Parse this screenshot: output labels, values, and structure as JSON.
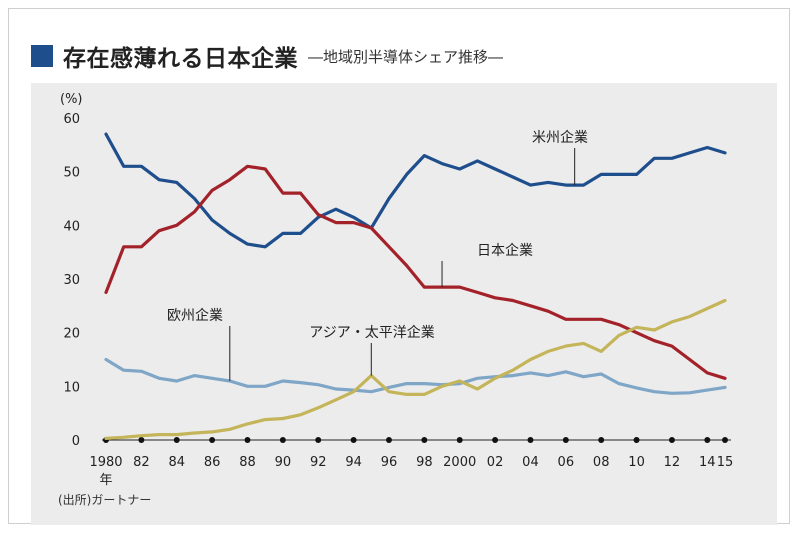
{
  "header": {
    "title": "存在感薄れる日本企業",
    "subtitle": "―地域別半導体シェア推移―"
  },
  "source": "(出所)ガートナー",
  "colors": {
    "accent": "#1f4e8c",
    "us": "#1f4e8c",
    "japan": "#a3222a",
    "asia": "#c4b55a",
    "europe": "#7fa6c7",
    "panel": "#ececec"
  },
  "chart_data": {
    "type": "line",
    "title": "存在感薄れる日本企業",
    "subtitle": "―地域別半導体シェア推移―",
    "y_unit": "(%)",
    "ylim": [
      0,
      60
    ],
    "y_ticks": [
      0,
      10,
      20,
      30,
      40,
      50,
      60
    ],
    "xlim": [
      1980,
      2015
    ],
    "x_tick_values": [
      1980,
      1982,
      1984,
      1986,
      1988,
      1990,
      1992,
      1994,
      1996,
      1998,
      2000,
      2002,
      2004,
      2006,
      2008,
      2010,
      2012,
      2014,
      2015
    ],
    "x_tick_labels": [
      "1980",
      "82",
      "84",
      "86",
      "88",
      "90",
      "92",
      "94",
      "96",
      "98",
      "2000",
      "02",
      "04",
      "06",
      "08",
      "10",
      "12",
      "14",
      "15"
    ],
    "x_year_suffix": "年",
    "series": [
      {
        "name": "米州企業",
        "color_key": "us",
        "x": [
          1980,
          1981,
          1982,
          1983,
          1984,
          1985,
          1986,
          1987,
          1988,
          1989,
          1990,
          1991,
          1992,
          1993,
          1994,
          1995,
          1996,
          1997,
          1998,
          1999,
          2000,
          2001,
          2002,
          2003,
          2004,
          2005,
          2006,
          2007,
          2008,
          2009,
          2010,
          2011,
          2012,
          2013,
          2014,
          2015
        ],
        "values": [
          57,
          51,
          51,
          48.5,
          48,
          45,
          41,
          38.5,
          36.5,
          36,
          38.5,
          38.5,
          41.5,
          43,
          41.5,
          39.5,
          45,
          49.5,
          53,
          51.5,
          50.5,
          52,
          50.5,
          49,
          47.5,
          48,
          47.5,
          47.5,
          49.5,
          49.5,
          49.5,
          52.5,
          52.5,
          53.5,
          54.5,
          53.5
        ]
      },
      {
        "name": "日本企業",
        "color_key": "japan",
        "x": [
          1980,
          1981,
          1982,
          1983,
          1984,
          1985,
          1986,
          1987,
          1988,
          1989,
          1990,
          1991,
          1992,
          1993,
          1994,
          1995,
          1996,
          1997,
          1998,
          1999,
          2000,
          2001,
          2002,
          2003,
          2004,
          2005,
          2006,
          2007,
          2008,
          2009,
          2010,
          2011,
          2012,
          2013,
          2014,
          2015
        ],
        "values": [
          27.5,
          36,
          36,
          39,
          40,
          42.5,
          46.5,
          48.5,
          51,
          50.5,
          46,
          46,
          42,
          40.5,
          40.5,
          39.5,
          36,
          32.5,
          28.5,
          28.5,
          28.5,
          27.5,
          26.5,
          26,
          25,
          24,
          22.5,
          22.5,
          22.5,
          21.5,
          20,
          18.5,
          17.5,
          15,
          12.5,
          11.5
        ]
      },
      {
        "name": "欧州企業",
        "color_key": "europe",
        "x": [
          1980,
          1981,
          1982,
          1983,
          1984,
          1985,
          1986,
          1987,
          1988,
          1989,
          1990,
          1991,
          1992,
          1993,
          1994,
          1995,
          1996,
          1997,
          1998,
          1999,
          2000,
          2001,
          2002,
          2003,
          2004,
          2005,
          2006,
          2007,
          2008,
          2009,
          2010,
          2011,
          2012,
          2013,
          2014,
          2015
        ],
        "values": [
          15,
          13,
          12.8,
          11.5,
          11,
          12,
          11.5,
          11,
          10,
          10,
          11,
          10.7,
          10.3,
          9.5,
          9.3,
          9,
          9.8,
          10.5,
          10.5,
          10.3,
          10.5,
          11.5,
          11.8,
          12,
          12.5,
          12,
          12.7,
          11.8,
          12.3,
          10.5,
          9.7,
          9,
          8.7,
          8.8,
          9.3,
          9.8
        ]
      },
      {
        "name": "アジア・太平洋企業",
        "color_key": "asia",
        "x": [
          1980,
          1981,
          1982,
          1983,
          1984,
          1985,
          1986,
          1987,
          1988,
          1989,
          1990,
          1991,
          1992,
          1993,
          1994,
          1995,
          1996,
          1997,
          1998,
          1999,
          2000,
          2001,
          2002,
          2003,
          2004,
          2005,
          2006,
          2007,
          2008,
          2009,
          2010,
          2011,
          2012,
          2013,
          2014,
          2015
        ],
        "values": [
          0.3,
          0.5,
          0.8,
          1,
          1,
          1.3,
          1.5,
          2,
          3,
          3.8,
          4,
          4.7,
          6,
          7.5,
          9,
          12,
          9,
          8.5,
          8.5,
          10,
          11,
          9.5,
          11.5,
          13,
          15,
          16.5,
          17.5,
          18,
          16.5,
          19.5,
          21,
          20.5,
          22,
          23,
          24.5,
          26
        ]
      }
    ],
    "annotations": [
      {
        "text": "米州企業",
        "series": "米州企業",
        "x": 2006.5
      },
      {
        "text": "日本企業",
        "series": "日本企業",
        "x": 1999
      },
      {
        "text": "欧州企業",
        "series": "欧州企業",
        "x": 1987
      },
      {
        "text": "アジア・太平洋企業",
        "series": "アジア・太平洋企業",
        "x": 1995
      }
    ],
    "grid": false,
    "legend": "inline labels"
  }
}
